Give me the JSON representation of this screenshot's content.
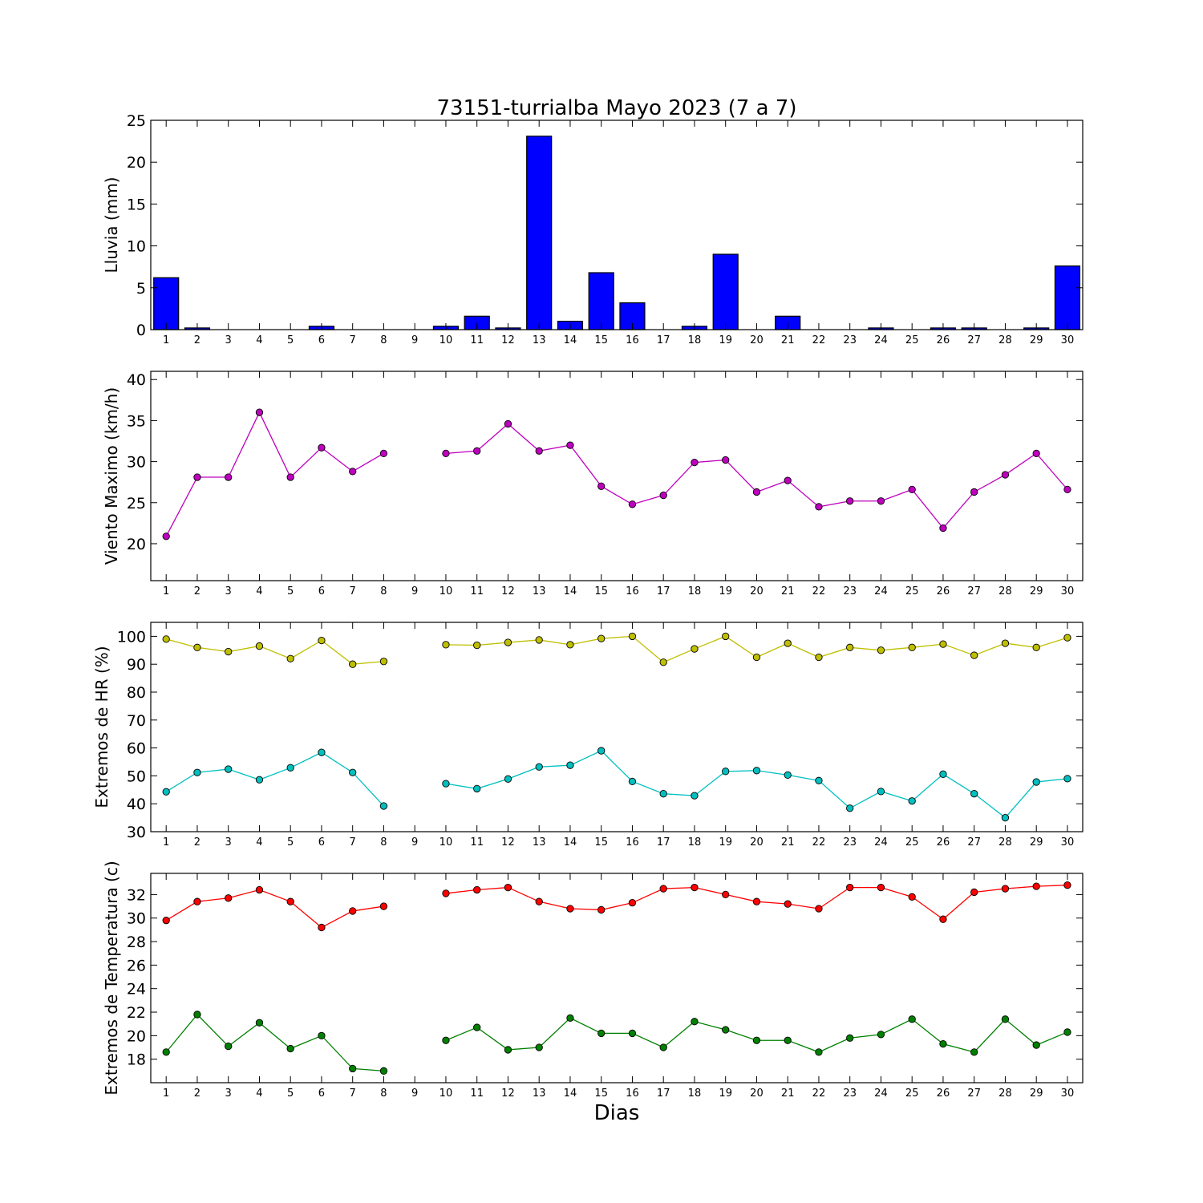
{
  "figure": {
    "title": "73151-turrialba Mayo 2023  (7 a 7)",
    "xlabel": "Dias"
  },
  "chart_data": [
    {
      "id": "lluvia",
      "type": "bar",
      "ylabel": "Lluvia (mm)",
      "ylim": [
        0,
        25
      ],
      "yticks": [
        0,
        5,
        10,
        15,
        20,
        25
      ],
      "ytick_labels": [
        "0",
        "5",
        "10",
        "15",
        "20",
        "25"
      ],
      "categories": [
        "1",
        "2",
        "3",
        "4",
        "5",
        "6",
        "7",
        "8",
        "9",
        "10",
        "11",
        "12",
        "13",
        "14",
        "15",
        "16",
        "17",
        "18",
        "19",
        "20",
        "21",
        "22",
        "23",
        "24",
        "25",
        "26",
        "27",
        "28",
        "29",
        "30"
      ],
      "series": [
        {
          "color": "#0000ff",
          "values": [
            6.2,
            0.2,
            0,
            0,
            0,
            0.4,
            0,
            0,
            0,
            0.4,
            1.6,
            0.2,
            23.1,
            1.0,
            6.8,
            3.2,
            0,
            0.4,
            9.0,
            0,
            1.6,
            0,
            0,
            0.2,
            0,
            0.2,
            0.2,
            0,
            0.2,
            7.6
          ]
        }
      ]
    },
    {
      "id": "viento",
      "type": "line",
      "ylabel": "Viento Maximo (km/h)",
      "ylim": [
        15.5,
        41
      ],
      "yticks": [
        20,
        25,
        30,
        35,
        40
      ],
      "ytick_labels": [
        "20",
        "25",
        "30",
        "35",
        "40"
      ],
      "categories": [
        "1",
        "2",
        "3",
        "4",
        "5",
        "6",
        "7",
        "8",
        "9",
        "10",
        "11",
        "12",
        "13",
        "14",
        "15",
        "16",
        "17",
        "18",
        "19",
        "20",
        "21",
        "22",
        "23",
        "24",
        "25",
        "26",
        "27",
        "28",
        "29",
        "30"
      ],
      "series": [
        {
          "color": "#bf00bf",
          "values": [
            20.9,
            28.1,
            28.1,
            36.0,
            28.1,
            31.7,
            28.8,
            31.0,
            null,
            31.0,
            31.3,
            34.6,
            31.3,
            32.0,
            27.0,
            24.8,
            25.9,
            29.9,
            30.2,
            26.3,
            27.7,
            24.5,
            25.2,
            25.2,
            26.6,
            21.9,
            26.3,
            28.4,
            31.0,
            26.6
          ]
        }
      ]
    },
    {
      "id": "hr",
      "type": "line",
      "ylabel": "Extremos de HR (%)",
      "ylim": [
        30,
        105
      ],
      "yticks": [
        30,
        40,
        50,
        60,
        70,
        80,
        90,
        100
      ],
      "ytick_labels": [
        "30",
        "40",
        "50",
        "60",
        "70",
        "80",
        "90",
        "100"
      ],
      "categories": [
        "1",
        "2",
        "3",
        "4",
        "5",
        "6",
        "7",
        "8",
        "9",
        "10",
        "11",
        "12",
        "13",
        "14",
        "15",
        "16",
        "17",
        "18",
        "19",
        "20",
        "21",
        "22",
        "23",
        "24",
        "25",
        "26",
        "27",
        "28",
        "29",
        "30"
      ],
      "series": [
        {
          "color": "#bfbf00",
          "values": [
            99.0,
            96.0,
            94.5,
            96.5,
            92.0,
            98.5,
            90.0,
            91.0,
            null,
            97.0,
            96.8,
            97.8,
            98.7,
            97.0,
            99.2,
            100.0,
            90.7,
            95.5,
            100.0,
            92.5,
            97.5,
            92.5,
            96.0,
            95.0,
            96.0,
            97.2,
            93.2,
            97.5,
            96.0,
            99.5
          ]
        },
        {
          "color": "#00bfbf",
          "values": [
            44.3,
            51.2,
            52.4,
            48.6,
            52.9,
            58.4,
            51.2,
            39.2,
            null,
            47.2,
            45.4,
            48.9,
            53.2,
            53.8,
            59.0,
            48.0,
            43.6,
            42.9,
            51.6,
            51.9,
            50.3,
            48.3,
            38.4,
            44.4,
            41.0,
            50.6,
            43.6,
            35.0,
            47.8,
            49.0
          ]
        }
      ]
    },
    {
      "id": "temperatura",
      "type": "line",
      "ylabel": "Extremos de Temperatura (c)",
      "ylim": [
        16,
        33.8
      ],
      "yticks": [
        18,
        20,
        22,
        24,
        26,
        28,
        30,
        32
      ],
      "ytick_labels": [
        "18",
        "20",
        "22",
        "24",
        "26",
        "28",
        "30",
        "32"
      ],
      "categories": [
        "1",
        "2",
        "3",
        "4",
        "5",
        "6",
        "7",
        "8",
        "9",
        "10",
        "11",
        "12",
        "13",
        "14",
        "15",
        "16",
        "17",
        "18",
        "19",
        "20",
        "21",
        "22",
        "23",
        "24",
        "25",
        "26",
        "27",
        "28",
        "29",
        "30"
      ],
      "series": [
        {
          "color": "#ff0000",
          "values": [
            29.8,
            31.4,
            31.7,
            32.4,
            31.4,
            29.2,
            30.6,
            31.0,
            null,
            32.1,
            32.4,
            32.6,
            31.4,
            30.8,
            30.7,
            31.3,
            32.5,
            32.6,
            32.0,
            31.4,
            31.2,
            30.8,
            32.6,
            32.6,
            31.8,
            29.9,
            32.2,
            32.5,
            32.7,
            32.8
          ]
        },
        {
          "color": "#008000",
          "values": [
            18.6,
            21.8,
            19.1,
            21.1,
            18.9,
            20.0,
            17.2,
            17.0,
            null,
            19.6,
            20.7,
            18.8,
            19.0,
            21.5,
            20.2,
            20.2,
            19.0,
            21.2,
            20.5,
            19.6,
            19.6,
            18.6,
            19.8,
            20.1,
            21.4,
            19.3,
            18.6,
            21.4,
            19.2,
            20.3
          ]
        }
      ]
    }
  ]
}
